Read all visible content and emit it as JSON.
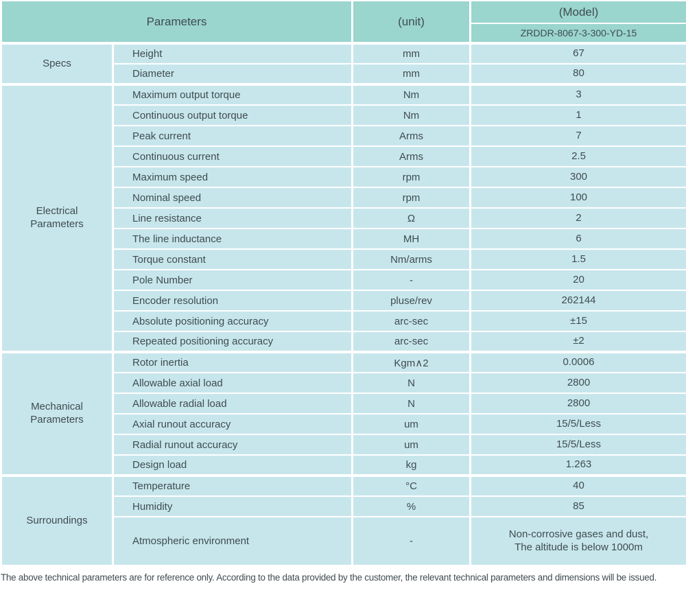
{
  "colors": {
    "header-bg": "#9ad5ce",
    "cell-bg": "#c7e6ec",
    "text": "#3f4c50"
  },
  "header": {
    "parameters_label": "Parameters",
    "unit_label": "(unit)",
    "model_label": "(Model)",
    "model_value": "ZRDDR-8067-3-300-YD-15"
  },
  "sections": [
    {
      "label": "Specs",
      "rows": [
        {
          "param": "Height",
          "unit": "mm",
          "value": "67"
        },
        {
          "param": "Diameter",
          "unit": "mm",
          "value": "80"
        }
      ]
    },
    {
      "label": "Electrical\nParameters",
      "rows": [
        {
          "param": "Maximum output torque",
          "unit": "Nm",
          "value": "3"
        },
        {
          "param": "Continuous output torque",
          "unit": "Nm",
          "value": "1"
        },
        {
          "param": "Peak current",
          "unit": "Arms",
          "value": "7"
        },
        {
          "param": "Continuous current",
          "unit": "Arms",
          "value": "2.5"
        },
        {
          "param": "Maximum speed",
          "unit": "rpm",
          "value": "300"
        },
        {
          "param": "Nominal speed",
          "unit": "rpm",
          "value": "100"
        },
        {
          "param": "Line resistance",
          "unit": "Ω",
          "value": "2"
        },
        {
          "param": "The line inductance",
          "unit": "MH",
          "value": "6"
        },
        {
          "param": "Torque constant",
          "unit": "Nm/arms",
          "value": "1.5"
        },
        {
          "param": "Pole Number",
          "unit": "-",
          "value": "20"
        },
        {
          "param": "Encoder resolution",
          "unit": "pluse/rev",
          "value": "262144"
        },
        {
          "param": "Absolute positioning accuracy",
          "unit": "arc-sec",
          "value": "±15"
        },
        {
          "param": "Repeated positioning accuracy",
          "unit": "arc-sec",
          "value": "±2"
        }
      ]
    },
    {
      "label": "Mechanical\nParameters",
      "rows": [
        {
          "param": "Rotor inertia",
          "unit": "Kgm∧2",
          "value": "0.0006"
        },
        {
          "param": "Allowable axial load",
          "unit": "N",
          "value": "2800"
        },
        {
          "param": "Allowable radial load",
          "unit": "N",
          "value": "2800"
        },
        {
          "param": "Axial runout accuracy",
          "unit": "um",
          "value": "15/5/Less"
        },
        {
          "param": "Radial runout accuracy",
          "unit": "um",
          "value": "15/5/Less"
        },
        {
          "param": "Design load",
          "unit": "kg",
          "value": "1.263"
        }
      ]
    },
    {
      "label": "Surroundings",
      "rows": [
        {
          "param": "Temperature",
          "unit": "°C",
          "value": "40"
        },
        {
          "param": "Humidity",
          "unit": "%",
          "value": "85"
        },
        {
          "param": "Atmospheric environment",
          "unit": "-",
          "value": "Non-corrosive gases and dust,\nThe altitude is below 1000m"
        }
      ]
    }
  ],
  "footer_note": "The above technical parameters are for reference only. According to the data provided by the customer, the relevant technical parameters and dimensions will be issued."
}
